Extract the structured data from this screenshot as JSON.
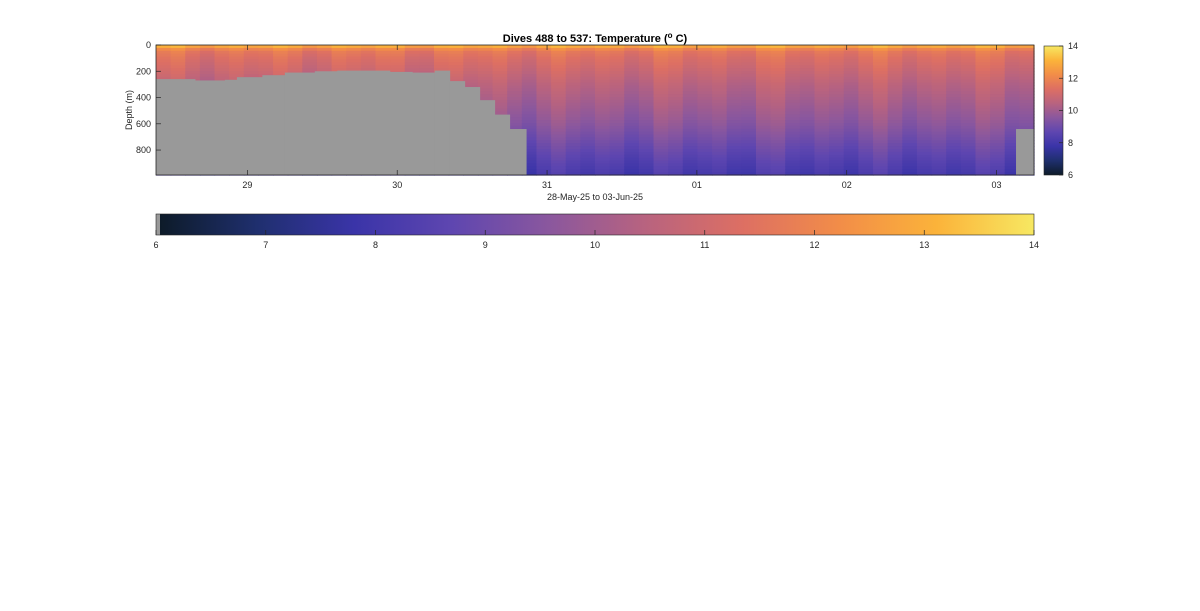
{
  "chart_data": {
    "type": "heatmap",
    "title_main": "Dives 488 to 537: Temperature (",
    "title_sup": "o",
    "title_end": " C)",
    "ylabel": "Depth (m)",
    "xlabel": "28-May-25 to 03-Jun-25",
    "x_ticks": [
      {
        "day": 29,
        "label": "29"
      },
      {
        "day": 30,
        "label": "30"
      },
      {
        "day": 31,
        "label": "31"
      },
      {
        "day": 32,
        "label": "01"
      },
      {
        "day": 33,
        "label": "02"
      },
      {
        "day": 34,
        "label": "03"
      }
    ],
    "y_ticks": [
      {
        "depth": 0,
        "label": "0"
      },
      {
        "depth": 200,
        "label": "200"
      },
      {
        "depth": 400,
        "label": "400"
      },
      {
        "depth": 600,
        "label": "600"
      },
      {
        "depth": 800,
        "label": "800"
      }
    ],
    "xlim": [
      28.39,
      34.25
    ],
    "ylim": [
      0,
      990
    ],
    "clim": [
      6,
      14
    ],
    "colorbar_side_ticks": [
      {
        "value": 6,
        "label": "6"
      },
      {
        "value": 8,
        "label": "8"
      },
      {
        "value": 10,
        "label": "10"
      },
      {
        "value": 12,
        "label": "12"
      },
      {
        "value": 14,
        "label": "14"
      }
    ],
    "colorbar_bottom_ticks": [
      {
        "value": 6,
        "label": "6"
      },
      {
        "value": 7,
        "label": "7"
      },
      {
        "value": 8,
        "label": "8"
      },
      {
        "value": 9,
        "label": "9"
      },
      {
        "value": 10,
        "label": "10"
      },
      {
        "value": 11,
        "label": "11"
      },
      {
        "value": 12,
        "label": "12"
      },
      {
        "value": 13,
        "label": "13"
      },
      {
        "value": 14,
        "label": "14"
      }
    ],
    "colormap": [
      "#0d1b29",
      "#1f2f6e",
      "#3a34a8",
      "#5e46b0",
      "#8a579e",
      "#b8637f",
      "#dd6f63",
      "#f28d48",
      "#fbb33a",
      "#f7e862"
    ],
    "nodata_color": "#999999",
    "seafloor_depth": [
      {
        "day": 28.39,
        "depth": 260
      },
      {
        "day": 28.55,
        "depth": 260
      },
      {
        "day": 28.65,
        "depth": 270
      },
      {
        "day": 28.85,
        "depth": 265
      },
      {
        "day": 28.93,
        "depth": 245
      },
      {
        "day": 29.1,
        "depth": 230
      },
      {
        "day": 29.25,
        "depth": 210
      },
      {
        "day": 29.45,
        "depth": 200
      },
      {
        "day": 29.6,
        "depth": 195
      },
      {
        "day": 29.75,
        "depth": 195
      },
      {
        "day": 29.95,
        "depth": 205
      },
      {
        "day": 30.1,
        "depth": 210
      },
      {
        "day": 30.25,
        "depth": 195
      },
      {
        "day": 30.35,
        "depth": 275
      },
      {
        "day": 30.45,
        "depth": 320
      },
      {
        "day": 30.55,
        "depth": 420
      },
      {
        "day": 30.65,
        "depth": 530
      },
      {
        "day": 30.75,
        "depth": 640
      },
      {
        "day": 30.86,
        "depth": 990
      },
      {
        "day": 34.13,
        "depth": 640
      },
      {
        "day": 34.25,
        "depth": 640
      }
    ],
    "profile": {
      "depths": [
        0,
        20,
        50,
        100,
        150,
        200,
        300,
        400,
        500,
        600,
        700,
        800,
        900,
        990
      ],
      "temps": [
        13.5,
        12.3,
        11.6,
        11.3,
        11.1,
        10.9,
        10.5,
        10.2,
        9.9,
        9.6,
        9.2,
        8.8,
        8.4,
        8.1
      ]
    }
  }
}
